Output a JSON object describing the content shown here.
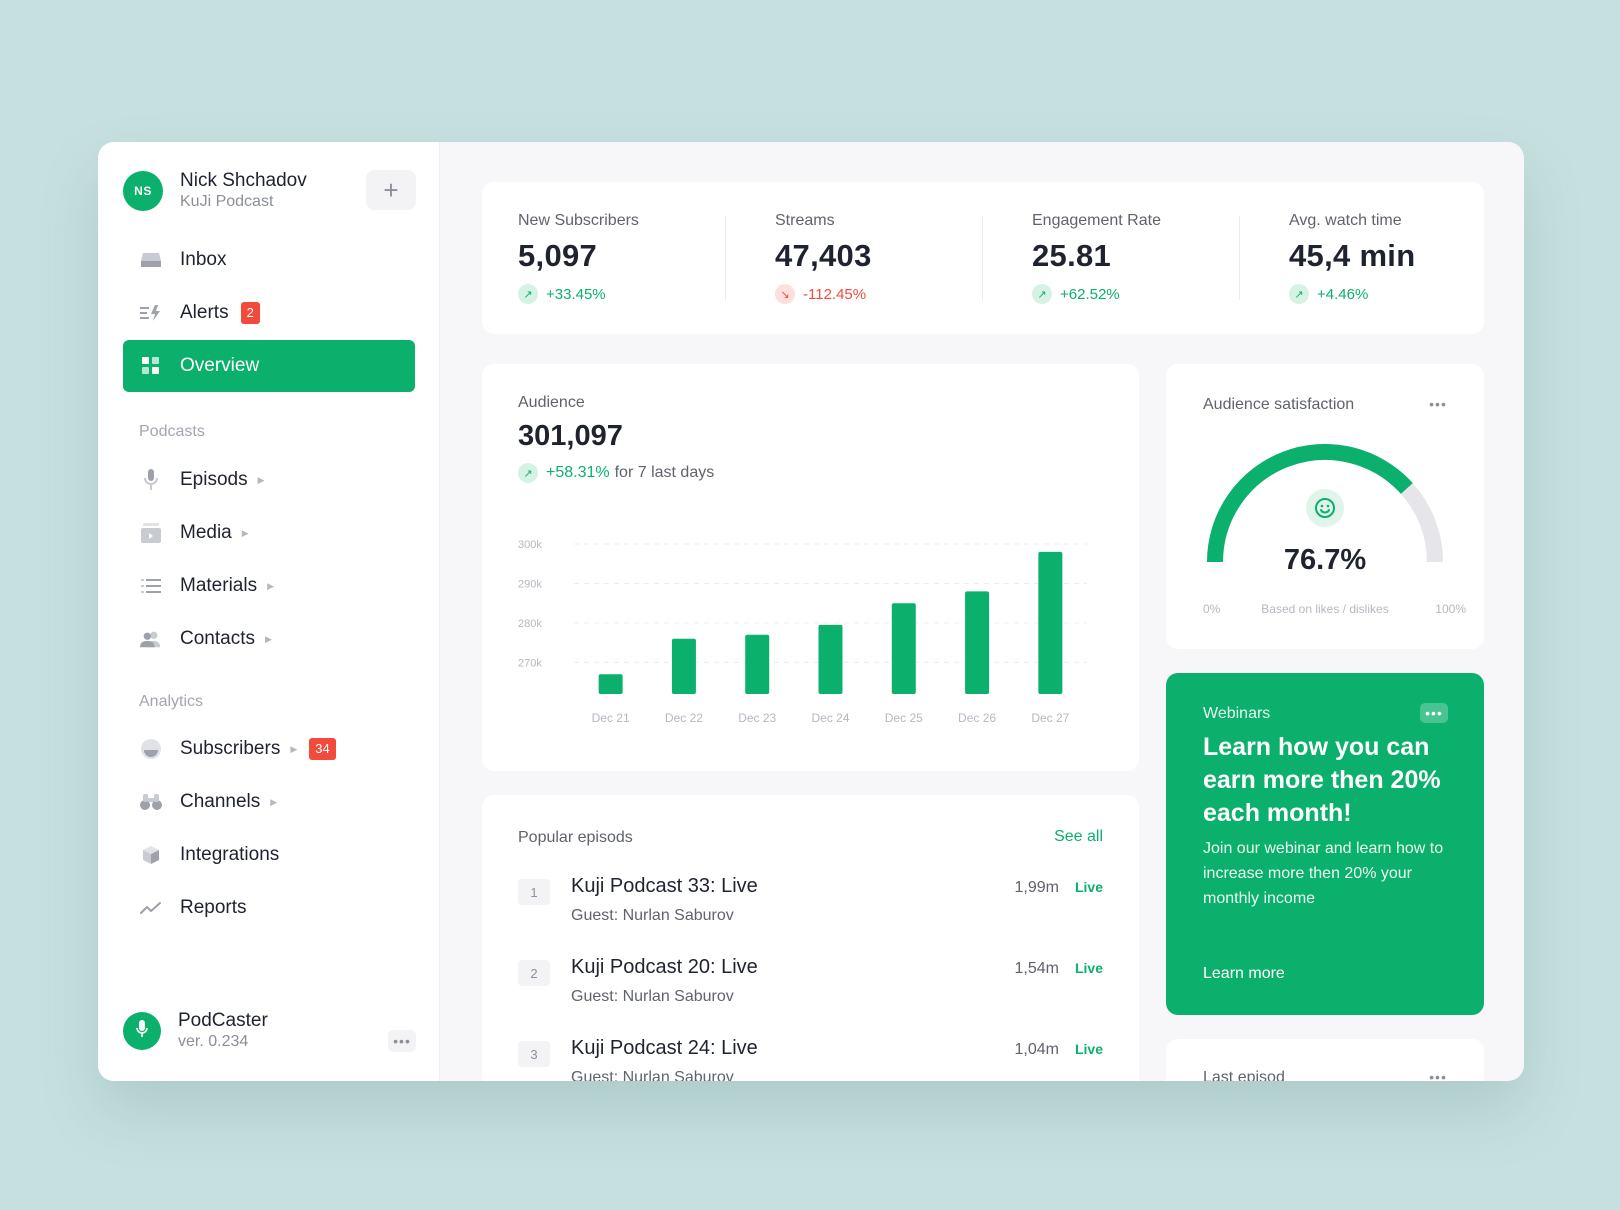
{
  "user": {
    "initials": "NS",
    "name": "Nick Shchadov",
    "workspace": "KuJi Podcast"
  },
  "nav": {
    "top": [
      {
        "label": "Inbox",
        "icon": "inbox-icon"
      },
      {
        "label": "Alerts",
        "icon": "alerts-icon",
        "badge": "2"
      },
      {
        "label": "Overview",
        "icon": "grid-icon",
        "active": true
      }
    ],
    "podcasts_label": "Podcasts",
    "podcasts": [
      {
        "label": "Episods",
        "icon": "mic-icon"
      },
      {
        "label": "Media",
        "icon": "media-icon"
      },
      {
        "label": "Materials",
        "icon": "list-icon"
      },
      {
        "label": "Contacts",
        "icon": "contacts-icon"
      }
    ],
    "analytics_label": "Analytics",
    "analytics": [
      {
        "label": "Subscribers",
        "icon": "subscribers-icon",
        "badge": "34"
      },
      {
        "label": "Channels",
        "icon": "binoculars-icon"
      },
      {
        "label": "Integrations",
        "icon": "cube-icon"
      },
      {
        "label": "Reports",
        "icon": "trend-icon"
      }
    ]
  },
  "app_footer": {
    "name": "PodCaster",
    "version": "ver. 0.234"
  },
  "stats": [
    {
      "label": "New Subscribers",
      "value": "5,097",
      "change": "+33.45%",
      "direction": "up"
    },
    {
      "label": "Streams",
      "value": "47,403",
      "change": "-112.45%",
      "direction": "down"
    },
    {
      "label": "Engagement Rate",
      "value": "25.81",
      "change": "+62.52%",
      "direction": "up"
    },
    {
      "label": "Avg. watch time",
      "value": "45,4 min",
      "change": "+4.46%",
      "direction": "up"
    }
  ],
  "audience": {
    "title": "Audience",
    "value": "301,097",
    "change": "+58.31%",
    "change_suffix": "for 7 last days"
  },
  "chart_data": {
    "type": "bar",
    "title": "Audience",
    "categories": [
      "Dec 21",
      "Dec 22",
      "Dec 23",
      "Dec 24",
      "Dec 25",
      "Dec 26",
      "Dec 27"
    ],
    "values": [
      267000,
      276000,
      277000,
      279500,
      285000,
      288000,
      298000
    ],
    "y_ticks": [
      270000,
      280000,
      290000,
      300000
    ],
    "y_tick_labels": [
      "270k",
      "280k",
      "290k",
      "300k"
    ],
    "ylim": [
      262000,
      300000
    ],
    "color": "#0bb06c",
    "grid": true
  },
  "satisfaction": {
    "title": "Audience satisfaction",
    "value": "76.7%",
    "percent": 76.7,
    "min_label": "0%",
    "max_label": "100%",
    "caption": "Based on likes / dislikes",
    "more": "•••"
  },
  "webinar": {
    "label": "Webinars",
    "title": "Learn how you can earn more then 20% each month!",
    "description": "Join our webinar and learn how to increase more then 20% your monthly income",
    "link": "Learn more",
    "more": "•••"
  },
  "last_episode": {
    "title": "Last episod",
    "more": "•••"
  },
  "episodes": {
    "title": "Popular episods",
    "see_all": "See all",
    "items": [
      {
        "num": "1",
        "title": "Kuji Podcast 33: Live",
        "guest": "Guest: Nurlan Saburov",
        "plays": "1,99m",
        "status": "Live"
      },
      {
        "num": "2",
        "title": "Kuji Podcast 20: Live",
        "guest": "Guest: Nurlan Saburov",
        "plays": "1,54m",
        "status": "Live"
      },
      {
        "num": "3",
        "title": "Kuji Podcast 24: Live",
        "guest": "Guest: Nurlan Saburov",
        "plays": "1,04m",
        "status": "Live"
      }
    ]
  },
  "more_label": "•••",
  "add_label": "+",
  "colors": {
    "accent": "#0bb06c",
    "danger": "#f24a3b",
    "background": "#c6e0df"
  }
}
